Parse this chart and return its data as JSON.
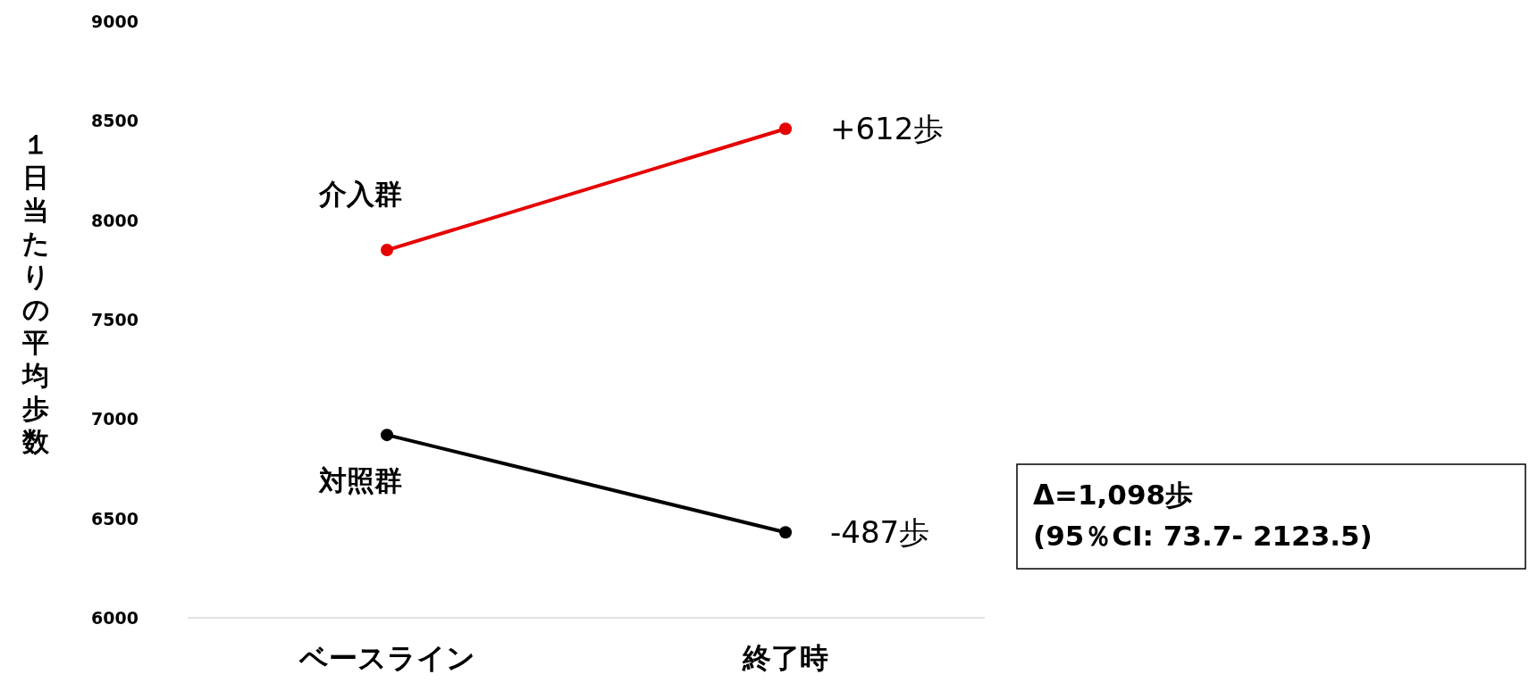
{
  "chart_data": {
    "type": "line",
    "ylabel": "１日当たりの平均歩数",
    "categories": [
      "ベースライン",
      "終了時"
    ],
    "series": [
      {
        "name": "介入群",
        "color": "#e60000",
        "values": [
          7850,
          8460
        ]
      },
      {
        "name": "対照群",
        "color": "#000000",
        "values": [
          6920,
          6430
        ]
      }
    ],
    "ylim": [
      6000,
      9000
    ],
    "yticks": [
      6000,
      6500,
      7000,
      7500,
      8000,
      8500,
      9000
    ],
    "grid": false,
    "legend": false,
    "marker": "circle",
    "line_style": "solid",
    "annotations": [
      {
        "text": "+612歩",
        "x": "終了時",
        "y": 8460
      },
      {
        "text": "-487歩",
        "x": "終了時",
        "y": 6430
      },
      "Δ=1,098歩\n(95％CI: 73.7- 2123.5)"
    ]
  }
}
